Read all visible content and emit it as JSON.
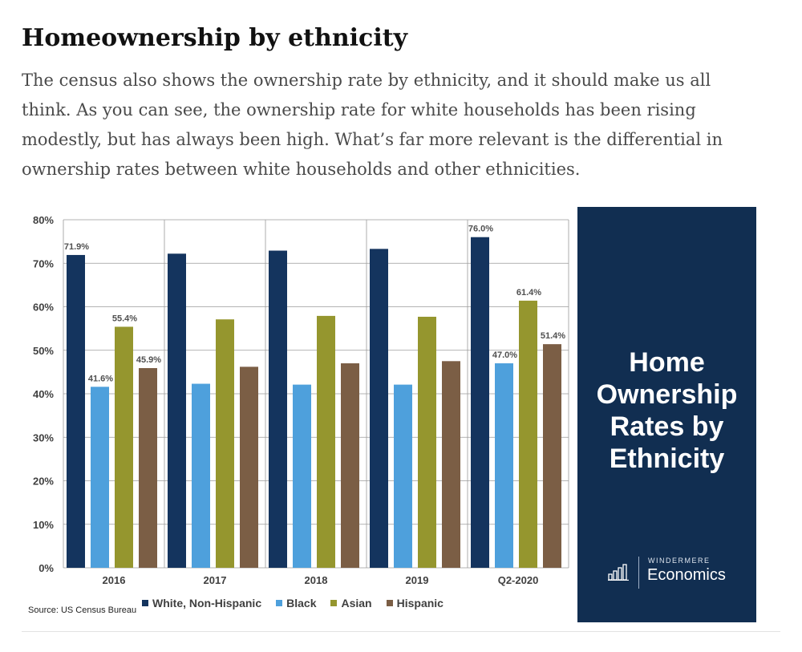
{
  "article": {
    "heading": "Homeownership by ethnicity",
    "intro": "The census also shows the ownership rate by ethnicity, and it should make us all think. As you can see, the ownership rate for white households has been rising modestly, but has always been high. What’s far more relevant is the differential in ownership rates between white households and other ethnicities."
  },
  "chart_data": {
    "type": "bar",
    "title": "Home Ownership Rates by Ethnicity",
    "categories": [
      "2016",
      "2017",
      "2018",
      "2019",
      "Q2-2020"
    ],
    "series": [
      {
        "name": "White, Non-Hispanic",
        "color": "#14345e",
        "values": [
          71.9,
          72.2,
          72.9,
          73.3,
          76.0
        ],
        "labels": [
          "71.9%",
          "",
          "",
          "",
          "76.0%"
        ]
      },
      {
        "name": "Black",
        "color": "#4ea0dc",
        "values": [
          41.6,
          42.3,
          42.1,
          42.1,
          47.0
        ],
        "labels": [
          "41.6%",
          "",
          "",
          "",
          "47.0%"
        ]
      },
      {
        "name": "Asian",
        "color": "#95962e",
        "values": [
          55.4,
          57.1,
          57.9,
          57.7,
          61.4
        ],
        "labels": [
          "55.4%",
          "",
          "",
          "",
          "61.4%"
        ]
      },
      {
        "name": "Hispanic",
        "color": "#7b5e45",
        "values": [
          45.9,
          46.2,
          47.0,
          47.5,
          51.4
        ],
        "labels": [
          "45.9%",
          "",
          "",
          "",
          "51.4%"
        ]
      }
    ],
    "yticks": [
      "0%",
      "10%",
      "20%",
      "30%",
      "40%",
      "50%",
      "60%",
      "70%",
      "80%"
    ],
    "ylim": [
      0,
      80
    ],
    "grid": true,
    "legend_position": "bottom",
    "source": "Source: US Census Bureau"
  },
  "panel": {
    "title_lines": [
      "Home",
      "Ownership",
      "Rates by",
      "Ethnicity"
    ],
    "brand_top": "WINDERMERE",
    "brand_bottom": "Economics",
    "background": "#112e51"
  }
}
